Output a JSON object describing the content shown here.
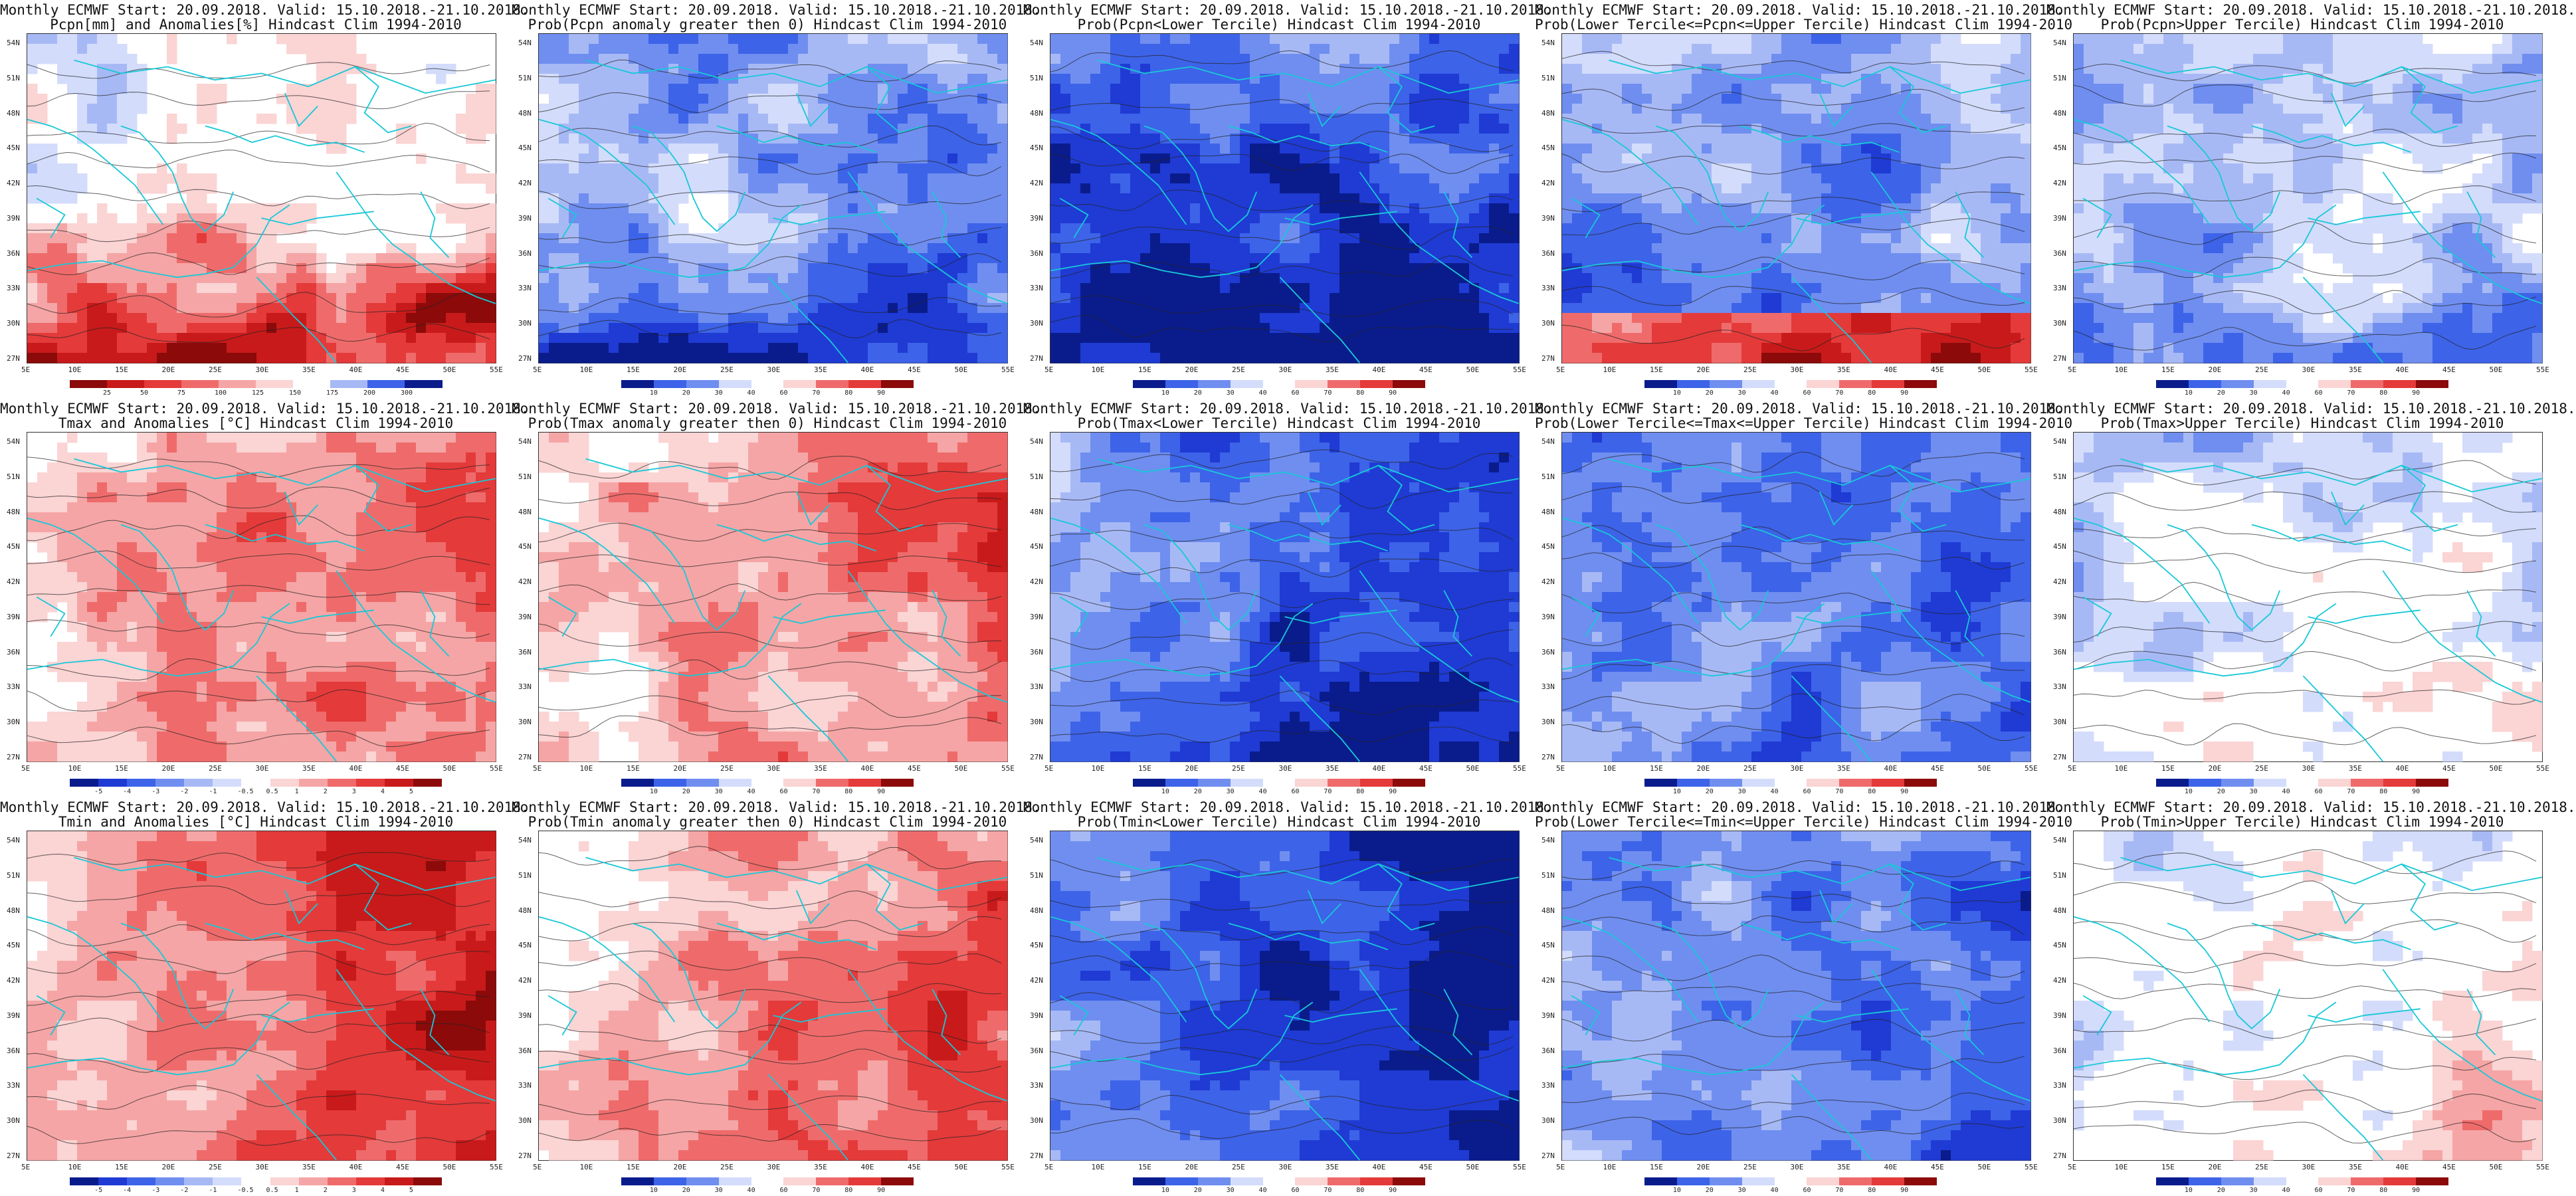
{
  "panels": [
    {
      "row": 0,
      "col": 0,
      "t1": "Monthly ECMWF Start: 20.09.2018. Valid: 15.10.2018.-21.10.2018.",
      "t2": "Pcpn[mm] and Anomalies[%] Hindcast Clim 1994-2010",
      "field": "prec_anom",
      "ticks": [
        "25",
        "50",
        "75",
        "100",
        "125",
        "150",
        "175",
        "200",
        "300"
      ]
    },
    {
      "row": 0,
      "col": 1,
      "t1": "Monthly ECMWF Start: 20.09.2018. Valid: 15.10.2018.-21.10.2018.",
      "t2": "Prob(Pcpn anomaly greater then 0) Hindcast Clim 1994-2010",
      "field": "prec_pos",
      "ticks": [
        "10",
        "20",
        "30",
        "40",
        "60",
        "70",
        "80",
        "90"
      ]
    },
    {
      "row": 0,
      "col": 2,
      "t1": "Monthly ECMWF Start: 20.09.2018. Valid: 15.10.2018.-21.10.2018.",
      "t2": "Prob(Pcpn<Lower Tercile) Hindcast Clim 1994-2010",
      "field": "prec_low",
      "ticks": [
        "10",
        "20",
        "30",
        "40",
        "60",
        "70",
        "80",
        "90"
      ]
    },
    {
      "row": 0,
      "col": 3,
      "t1": "Monthly ECMWF Start: 20.09.2018. Valid: 15.10.2018.-21.10.2018.",
      "t2": "Prob(Lower Tercile<=Pcpn<=Upper Tercile) Hindcast Clim 1994-2010",
      "field": "prec_mid",
      "ticks": [
        "10",
        "20",
        "30",
        "40",
        "60",
        "70",
        "80",
        "90"
      ]
    },
    {
      "row": 0,
      "col": 4,
      "t1": "Monthly ECMWF Start: 20.09.2018. Valid: 15.10.2018.-21.10.2018.",
      "t2": "Prob(Pcpn>Upper Tercile) Hindcast Clim 1994-2010",
      "field": "prec_up",
      "ticks": [
        "10",
        "20",
        "30",
        "40",
        "60",
        "70",
        "80",
        "90"
      ]
    },
    {
      "row": 1,
      "col": 0,
      "t1": "Monthly ECMWF Start: 20.09.2018. Valid: 15.10.2018.-21.10.2018.",
      "t2": "Tmax and Anomalies [°C] Hindcast Clim 1994-2010",
      "field": "tmax_anom",
      "ticks": [
        "-5",
        "-4",
        "-3",
        "-2",
        "-1",
        "-0.5",
        "0.5",
        "1",
        "2",
        "3",
        "4",
        "5"
      ]
    },
    {
      "row": 1,
      "col": 1,
      "t1": "Monthly ECMWF Start: 20.09.2018. Valid: 15.10.2018.-21.10.2018.",
      "t2": "Prob(Tmax anomaly greater then 0) Hindcast Clim 1994-2010",
      "field": "tmax_pos",
      "ticks": [
        "10",
        "20",
        "30",
        "40",
        "60",
        "70",
        "80",
        "90"
      ]
    },
    {
      "row": 1,
      "col": 2,
      "t1": "Monthly ECMWF Start: 20.09.2018. Valid: 15.10.2018.-21.10.2018.",
      "t2": "Prob(Tmax<Lower Tercile) Hindcast Clim 1994-2010",
      "field": "tmax_low",
      "ticks": [
        "10",
        "20",
        "30",
        "40",
        "60",
        "70",
        "80",
        "90"
      ]
    },
    {
      "row": 1,
      "col": 3,
      "t1": "Monthly ECMWF Start: 20.09.2018. Valid: 15.10.2018.-21.10.2018.",
      "t2": "Prob(Lower Tercile<=Tmax<=Upper Tercile) Hindcast Clim 1994-2010",
      "field": "tmax_mid",
      "ticks": [
        "10",
        "20",
        "30",
        "40",
        "60",
        "70",
        "80",
        "90"
      ]
    },
    {
      "row": 1,
      "col": 4,
      "t1": "Monthly ECMWF Start: 20.09.2018. Valid: 15.10.2018.-21.10.2018.",
      "t2": "Prob(Tmax>Upper Tercile) Hindcast Clim 1994-2010",
      "field": "tmax_up",
      "ticks": [
        "10",
        "20",
        "30",
        "40",
        "60",
        "70",
        "80",
        "90"
      ]
    },
    {
      "row": 2,
      "col": 0,
      "t1": "Monthly ECMWF Start: 20.09.2018. Valid: 15.10.2018.-21.10.2018.",
      "t2": "Tmin and Anomalies [°C] Hindcast Clim 1994-2010",
      "field": "tmin_anom",
      "ticks": [
        "-5",
        "-4",
        "-3",
        "-2",
        "-1",
        "-0.5",
        "0.5",
        "1",
        "2",
        "3",
        "4",
        "5"
      ]
    },
    {
      "row": 2,
      "col": 1,
      "t1": "Monthly ECMWF Start: 20.09.2018. Valid: 15.10.2018.-21.10.2018.",
      "t2": "Prob(Tmin anomaly greater then 0) Hindcast Clim 1994-2010",
      "field": "tmin_pos",
      "ticks": [
        "10",
        "20",
        "30",
        "40",
        "60",
        "70",
        "80",
        "90"
      ]
    },
    {
      "row": 2,
      "col": 2,
      "t1": "Monthly ECMWF Start: 20.09.2018. Valid: 15.10.2018.-21.10.2018.",
      "t2": "Prob(Tmin<Lower Tercile) Hindcast Clim 1994-2010",
      "field": "tmin_low",
      "ticks": [
        "10",
        "20",
        "30",
        "40",
        "60",
        "70",
        "80",
        "90"
      ]
    },
    {
      "row": 2,
      "col": 3,
      "t1": "Monthly ECMWF Start: 20.09.2018. Valid: 15.10.2018.-21.10.2018.",
      "t2": "Prob(Lower Tercile<=Tmin<=Upper Tercile) Hindcast Clim 1994-2010",
      "field": "tmin_mid",
      "ticks": [
        "10",
        "20",
        "30",
        "40",
        "60",
        "70",
        "80",
        "90"
      ]
    },
    {
      "row": 2,
      "col": 4,
      "t1": "Monthly ECMWF Start: 20.09.2018. Valid: 15.10.2018.-21.10.2018.",
      "t2": "Prob(Tmin>Upper Tercile) Hindcast Clim 1994-2010",
      "field": "tmin_up",
      "ticks": [
        "10",
        "20",
        "30",
        "40",
        "60",
        "70",
        "80",
        "90"
      ]
    }
  ],
  "lat_labels": [
    "54N",
    "51N",
    "48N",
    "45N",
    "42N",
    "39N",
    "36N",
    "33N",
    "30N",
    "27N"
  ],
  "lon_labels": [
    "5E",
    "10E",
    "15E",
    "20E",
    "25E",
    "30E",
    "35E",
    "40E",
    "45E",
    "50E",
    "55E"
  ],
  "colors": {
    "blues": [
      "#0a1c8c",
      "#1f3bd4",
      "#3d63e8",
      "#6f8ef0",
      "#a7b9f5",
      "#d3dcfb"
    ],
    "reds": [
      "#fbd4d4",
      "#f5a5a5",
      "#ef6b6b",
      "#e43a3a",
      "#c81a1a",
      "#8c0a0a"
    ],
    "coast": "#18c8d8",
    "contour": "#222222"
  }
}
